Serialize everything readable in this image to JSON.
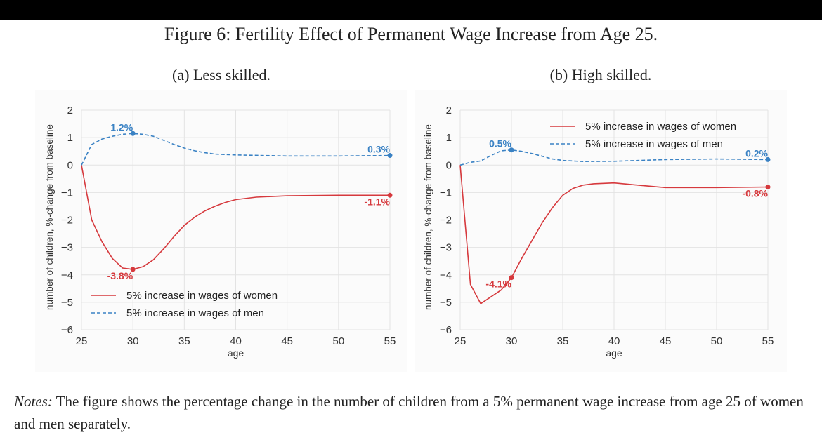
{
  "figure": {
    "title": "Figure 6: Fertility Effect of Permanent Wage Increase from Age 25.",
    "notes_label": "Notes:",
    "notes_text": " The figure shows the percentage change in the number of children from a 5% permanent wage increase from age 25 of women and men separately."
  },
  "colors": {
    "women": "#d6393d",
    "men": "#3a82c4",
    "grid": "#e3e3e3",
    "panel_bg": "#fbfbfb",
    "tick_text": "#333333"
  },
  "chart_data": [
    {
      "type": "line",
      "subtitle": "(a) Less skilled.",
      "xlabel": "age",
      "ylabel": "number of children, %-change from baseline",
      "xlim": [
        25,
        55
      ],
      "ylim": [
        -6,
        2
      ],
      "xticks": [
        25,
        30,
        35,
        40,
        45,
        50,
        55
      ],
      "yticks": [
        2,
        1,
        0,
        -1,
        -2,
        -3,
        -4,
        -5,
        -6
      ],
      "ytick_labels": [
        "2",
        "1",
        "0",
        "−1",
        "−2",
        "−3",
        "−4",
        "−5",
        "−6"
      ],
      "grid": true,
      "legend_position": "lower-left",
      "series": [
        {
          "name": "5% increase in wages of women",
          "style": "solid",
          "color_key": "women",
          "x": [
            25,
            26,
            27,
            28,
            29,
            30,
            31,
            32,
            33,
            34,
            35,
            36,
            37,
            38,
            39,
            40,
            42,
            45,
            50,
            55
          ],
          "y": [
            0,
            -2.0,
            -2.8,
            -3.4,
            -3.75,
            -3.8,
            -3.7,
            -3.45,
            -3.05,
            -2.6,
            -2.2,
            -1.9,
            -1.67,
            -1.5,
            -1.36,
            -1.26,
            -1.17,
            -1.12,
            -1.1,
            -1.1
          ]
        },
        {
          "name": "5% increase in wages of men",
          "style": "dashed",
          "color_key": "men",
          "x": [
            25,
            26,
            27,
            28,
            29,
            30,
            31,
            32,
            33,
            34,
            35,
            36,
            37,
            38,
            40,
            45,
            50,
            55
          ],
          "y": [
            0,
            0.75,
            0.95,
            1.05,
            1.12,
            1.15,
            1.12,
            1.05,
            0.9,
            0.75,
            0.62,
            0.52,
            0.45,
            0.4,
            0.37,
            0.33,
            0.33,
            0.35
          ]
        }
      ],
      "annotations": [
        {
          "text": "1.2%",
          "x": 30,
          "y": 1.15,
          "color_key": "men",
          "anchor": "left-above"
        },
        {
          "text": "0.3%",
          "x": 55,
          "y": 0.35,
          "color_key": "men",
          "anchor": "left-above"
        },
        {
          "text": "-3.8%",
          "x": 30,
          "y": -3.8,
          "color_key": "women",
          "anchor": "left-below"
        },
        {
          "text": "-1.1%",
          "x": 55,
          "y": -1.1,
          "color_key": "women",
          "anchor": "left-below"
        }
      ]
    },
    {
      "type": "line",
      "subtitle": "(b) High skilled.",
      "xlabel": "age",
      "ylabel": "number of children, %-change from baseline",
      "xlim": [
        25,
        55
      ],
      "ylim": [
        -6,
        2
      ],
      "xticks": [
        25,
        30,
        35,
        40,
        45,
        50,
        55
      ],
      "yticks": [
        2,
        1,
        0,
        -1,
        -2,
        -3,
        -4,
        -5,
        -6
      ],
      "ytick_labels": [
        "2",
        "1",
        "0",
        "−1",
        "−2",
        "−3",
        "−4",
        "−5",
        "−6"
      ],
      "grid": true,
      "legend_position": "upper-right",
      "series": [
        {
          "name": "5% increase in wages of women",
          "style": "solid",
          "color_key": "women",
          "x": [
            25,
            26,
            27,
            28,
            29,
            30,
            31,
            32,
            33,
            34,
            35,
            36,
            37,
            38,
            40,
            42,
            45,
            50,
            55
          ],
          "y": [
            0,
            -4.35,
            -5.05,
            -4.8,
            -4.55,
            -4.1,
            -3.4,
            -2.75,
            -2.1,
            -1.55,
            -1.1,
            -0.85,
            -0.73,
            -0.68,
            -0.65,
            -0.72,
            -0.82,
            -0.82,
            -0.8
          ]
        },
        {
          "name": "5% increase in wages of men",
          "style": "dashed",
          "color_key": "men",
          "x": [
            25,
            26,
            27,
            28,
            29,
            30,
            31,
            32,
            33,
            34,
            35,
            37,
            40,
            45,
            50,
            55
          ],
          "y": [
            0,
            0.1,
            0.15,
            0.35,
            0.52,
            0.55,
            0.5,
            0.42,
            0.32,
            0.22,
            0.17,
            0.13,
            0.14,
            0.2,
            0.22,
            0.2
          ]
        }
      ],
      "annotations": [
        {
          "text": "0.5%",
          "x": 30,
          "y": 0.55,
          "color_key": "men",
          "anchor": "left-above"
        },
        {
          "text": "0.2%",
          "x": 55,
          "y": 0.2,
          "color_key": "men",
          "anchor": "left-above"
        },
        {
          "text": "-4.1%",
          "x": 30,
          "y": -4.1,
          "color_key": "women",
          "anchor": "left-below"
        },
        {
          "text": "-0.8%",
          "x": 55,
          "y": -0.8,
          "color_key": "women",
          "anchor": "left-below"
        }
      ]
    }
  ]
}
